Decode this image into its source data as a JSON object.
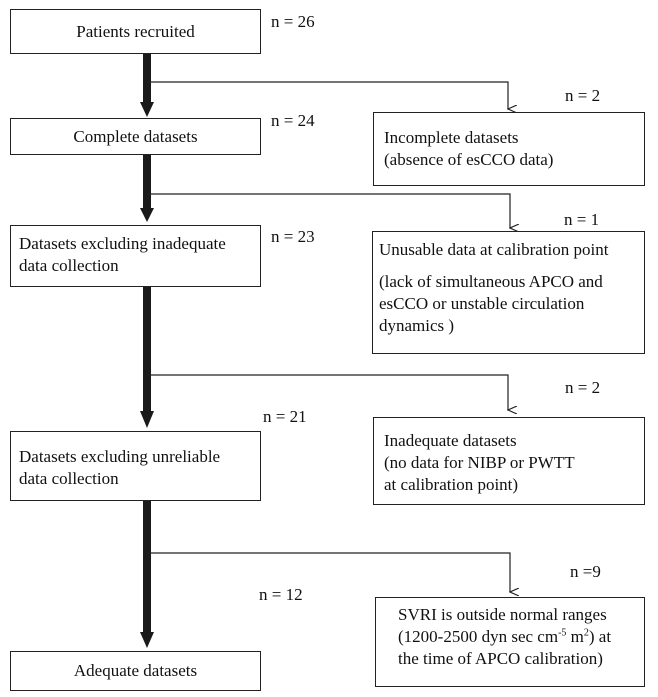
{
  "main_steps": [
    {
      "label_lines": [
        "Patients recruited"
      ],
      "n": "n = 26"
    },
    {
      "label_lines": [
        "Complete datasets"
      ],
      "n": "n = 24"
    },
    {
      "label_lines": [
        "Datasets excluding inadequate",
        "data collection"
      ],
      "n": "n = 23"
    },
    {
      "label_lines": [
        "Datasets excluding unreliable",
        "data collection"
      ],
      "n": "n = 21"
    },
    {
      "label_lines": [
        "Adequate datasets"
      ],
      "n": "n = 12"
    }
  ],
  "exclusions": [
    {
      "n": "n = 2",
      "lines": [
        "Incomplete datasets",
        "(absence of esCCO data)"
      ]
    },
    {
      "n": "n = 1",
      "title": "Unusable data at calibration point",
      "lines": [
        "(lack of simultaneous APCO and",
        "esCCO or unstable circulation",
        "dynamics )"
      ]
    },
    {
      "n": "n = 2",
      "lines": [
        "Inadequate datasets",
        "(no data for NIBP or PWTT",
        "at calibration point)"
      ]
    },
    {
      "n": "n =9",
      "lines": [
        "SVRI is outside normal ranges",
        "(1200-2500 dyn sec cm",
        "-5",
        " m",
        "2",
        ") at",
        "the time of APCO calibration)"
      ]
    }
  ]
}
